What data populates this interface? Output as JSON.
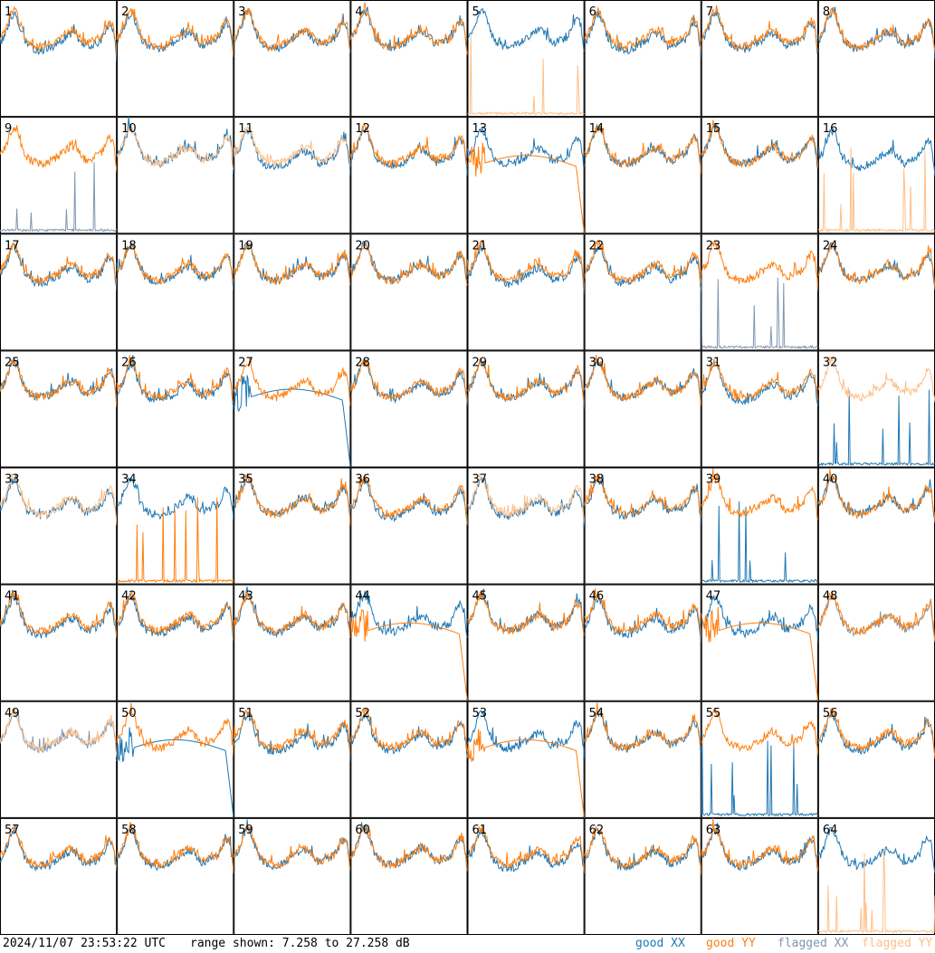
{
  "chart_data": {
    "type": "line",
    "grid": {
      "rows": 8,
      "cols": 8,
      "count": 64
    },
    "x_range": [
      0,
      1
    ],
    "y_range_db": [
      7.258,
      27.258
    ],
    "panel_labels": [
      "1",
      "2",
      "3",
      "4",
      "5",
      "6",
      "7",
      "8",
      "9",
      "10",
      "11",
      "12",
      "13",
      "14",
      "15",
      "16",
      "17",
      "18",
      "19",
      "20",
      "21",
      "22",
      "23",
      "24",
      "25",
      "26",
      "27",
      "28",
      "29",
      "30",
      "31",
      "32",
      "33",
      "34",
      "35",
      "36",
      "37",
      "38",
      "39",
      "40",
      "41",
      "42",
      "43",
      "44",
      "45",
      "46",
      "47",
      "48",
      "49",
      "50",
      "51",
      "52",
      "53",
      "54",
      "55",
      "56",
      "57",
      "58",
      "59",
      "60",
      "61",
      "62",
      "63",
      "64"
    ],
    "special_panels": {
      "5": "yy mostly near floor with a few tall spikes (flagged)",
      "9": "xx flagged, spiky near floor",
      "10": "yy flagged",
      "11": "yy flagged",
      "13": "yy smooth and drops to floor at end",
      "16": "yy flagged, near floor with spikes",
      "23": "xx flagged, spiky near floor",
      "27": "xx smooth arch, dropping to floor",
      "32": "yy flagged, xx near floor",
      "33": "yy flagged",
      "34": "yy mostly near floor with tall spikes",
      "37": "yy flagged",
      "39": "xx mostly near floor with tall spikes",
      "44": "yy smooth and drops to floor at end",
      "47": "yy smooth and drops to floor at end",
      "48": "xx flagged",
      "49": "xx and yy flagged",
      "50": "xx drops to floor at end",
      "53": "yy smooth arch, drops to floor at end",
      "55": "xx spiky near floor",
      "64": "yy flagged, near floor with spikes"
    },
    "series": [
      {
        "name": "good XX",
        "color": "#1f77b4"
      },
      {
        "name": "good YY",
        "color": "#ff7f0e"
      },
      {
        "name": "flagged XX",
        "color": "#7f97b0"
      },
      {
        "name": "flagged YY",
        "color": "#ffbf87"
      }
    ]
  },
  "footer": {
    "timestamp": "2024/11/07 23:53:22 UTC",
    "range_text": "range shown: 7.258 to 27.258 dB",
    "legend": {
      "good_xx": "good XX",
      "good_yy": "good YY",
      "flagged_xx": "flagged XX",
      "flagged_yy": "flagged YY"
    }
  },
  "colors": {
    "good_xx": "#1f77b4",
    "good_yy": "#ff7f0e",
    "flagged_xx": "#7f97b0",
    "flagged_yy": "#ffbf87",
    "border": "#000000"
  }
}
